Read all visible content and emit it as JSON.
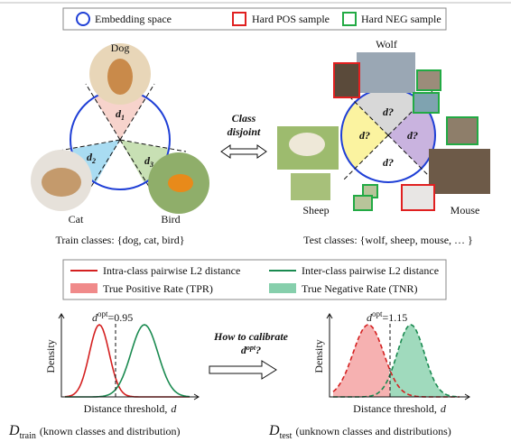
{
  "legend_top": [
    "Embedding space",
    "Hard POS sample",
    "Hard NEG sample"
  ],
  "train": {
    "classes": [
      "Dog",
      "Cat",
      "Bird"
    ],
    "distances": [
      {
        "symbol": "d",
        "subscript": "1"
      },
      {
        "symbol": "d",
        "subscript": "2"
      },
      {
        "symbol": "d",
        "subscript": "3"
      }
    ],
    "caption": "Train classes: {dog, cat, bird}"
  },
  "link": [
    "Class",
    "disjoint"
  ],
  "test": {
    "classes": [
      "Wolf",
      "Sheep",
      "Mouse"
    ],
    "distances": [
      "d?",
      "d?",
      "d?",
      "d?"
    ],
    "caption": "Test classes: {wolf, sheep, mouse, … }"
  },
  "legend_bottom": [
    "Intra-class pairwise L2 distance",
    "Inter-class pairwise L2 distance",
    "True Positive Rate (TPR)",
    "True Negative Rate (TNR)"
  ],
  "plots": [
    {
      "ylabel": "Density",
      "xlabel": "Distance threshold,",
      "xvar": "d",
      "threshold": {
        "symbol": "d",
        "superscript": "opt",
        "value": "=0.95"
      },
      "caption": {
        "symbol": "D",
        "subscript": "train",
        "text": "(known classes and distribution)"
      }
    },
    {
      "ylabel": "Density",
      "xlabel": "Distance threshold,",
      "xvar": "d",
      "threshold": {
        "symbol": "d",
        "superscript": "opt",
        "value": "=1.15"
      },
      "caption": {
        "symbol": "D",
        "subscript": "test",
        "text": "(unknown classes and distributions)"
      }
    }
  ],
  "question": {
    "line1": "How to calibrate",
    "symbol": "d",
    "superscript": "opt",
    "end": "?"
  }
}
